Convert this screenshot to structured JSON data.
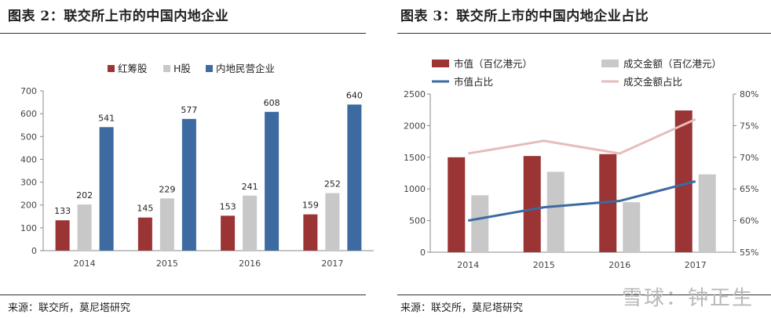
{
  "left": {
    "title": "图表 2：联交所上市的中国内地企业",
    "source": "来源：联交所，莫尼塔研究"
  },
  "right": {
    "title": "图表 3：联交所上市的中国内地企业占比",
    "source": "来源：联交所，莫尼塔研究"
  },
  "watermark": "雪球：钟正生",
  "colors": {
    "red": "#9b3434",
    "gray": "#c8c8c8",
    "blue": "#3d6aa0",
    "pink": "#e6bcbc",
    "axis": "#888888"
  },
  "chart_data": [
    {
      "type": "bar",
      "title": "",
      "categories": [
        "2014",
        "2015",
        "2016",
        "2017"
      ],
      "series": [
        {
          "name": "红筹股",
          "values": [
            133,
            145,
            153,
            159
          ]
        },
        {
          "name": "H股",
          "values": [
            202,
            229,
            241,
            252
          ]
        },
        {
          "name": "内地民营企业",
          "values": [
            541,
            577,
            608,
            640
          ]
        }
      ],
      "ylim": [
        0,
        700
      ],
      "yticks": [
        "0",
        "100",
        "200",
        "300",
        "400",
        "500",
        "600",
        "700"
      ],
      "legend": "top"
    },
    {
      "type": "bar",
      "title": "",
      "categories": [
        "2014",
        "2015",
        "2016",
        "2017"
      ],
      "series": [
        {
          "name": "市值（百亿港元）",
          "type": "bar",
          "axis": "left",
          "values": [
            1500,
            1520,
            1550,
            2240
          ]
        },
        {
          "name": "成交金额（百亿港元）",
          "type": "bar",
          "axis": "left",
          "values": [
            900,
            1270,
            790,
            1230
          ]
        },
        {
          "name": "市值占比",
          "type": "line",
          "axis": "right",
          "values": [
            60.0,
            62.1,
            63.1,
            66.2
          ]
        },
        {
          "name": "成交金额占比",
          "type": "line",
          "axis": "right",
          "values": [
            70.6,
            72.6,
            70.6,
            76.0
          ]
        }
      ],
      "ylim": [
        0,
        2500
      ],
      "y2lim": [
        55,
        80
      ],
      "yticks": [
        "0",
        "500",
        "1000",
        "1500",
        "2000",
        "2500"
      ],
      "y2ticks": [
        "55%",
        "60%",
        "65%",
        "70%",
        "75%",
        "80%"
      ],
      "legend": "top"
    }
  ]
}
